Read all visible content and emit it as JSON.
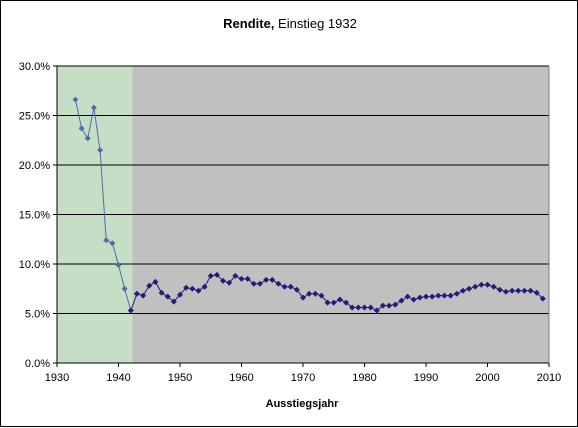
{
  "chart_data": {
    "type": "line",
    "title_bold": "Rendite,",
    "title_rest": " Einstieg 1932",
    "xlabel": "Ausstiegsjahr",
    "ylabel": "",
    "xlim": [
      1930,
      2010
    ],
    "ylim": [
      0.0,
      0.3
    ],
    "x_ticks": [
      1930,
      1940,
      1950,
      1960,
      1970,
      1980,
      1990,
      2000,
      2010
    ],
    "x_tick_labels": [
      "1930",
      "1940",
      "1950",
      "1960",
      "1970",
      "1980",
      "1990",
      "2000",
      "2010"
    ],
    "y_ticks": [
      0.0,
      0.05,
      0.1,
      0.15,
      0.2,
      0.25,
      0.3
    ],
    "y_tick_labels": [
      "0.0%",
      "5.0%",
      "10.0%",
      "15.0%",
      "20.0%",
      "25.0%",
      "30.0%"
    ],
    "grid": "horizontal",
    "highlight_range": [
      1930,
      1942.3
    ],
    "colors": {
      "plot_background": "#c0c0c0",
      "highlight": "#c6dec6",
      "series_early": "#4a6fa5",
      "series_main": "#1f1f7a",
      "gridline": "#000000"
    },
    "series": [
      {
        "segment": "early",
        "x": [
          1933,
          1934,
          1935,
          1936,
          1937,
          1938,
          1939,
          1940,
          1941,
          1942
        ],
        "y": [
          0.266,
          0.237,
          0.227,
          0.258,
          0.215,
          0.124,
          0.121,
          0.099,
          0.075,
          0.053
        ]
      },
      {
        "segment": "main",
        "x": [
          1942,
          1943,
          1944,
          1945,
          1946,
          1947,
          1948,
          1949,
          1950,
          1951,
          1952,
          1953,
          1954,
          1955,
          1956,
          1957,
          1958,
          1959,
          1960,
          1961,
          1962,
          1963,
          1964,
          1965,
          1966,
          1967,
          1968,
          1969,
          1970,
          1971,
          1972,
          1973,
          1974,
          1975,
          1976,
          1977,
          1978,
          1979,
          1980,
          1981,
          1982,
          1983,
          1984,
          1985,
          1986,
          1987,
          1988,
          1989,
          1990,
          1991,
          1992,
          1993,
          1994,
          1995,
          1996,
          1997,
          1998,
          1999,
          2000,
          2001,
          2002,
          2003,
          2004,
          2005,
          2006,
          2007,
          2008,
          2009
        ],
        "y": [
          0.053,
          0.07,
          0.068,
          0.078,
          0.082,
          0.071,
          0.067,
          0.062,
          0.069,
          0.076,
          0.075,
          0.073,
          0.077,
          0.088,
          0.089,
          0.083,
          0.081,
          0.088,
          0.085,
          0.085,
          0.08,
          0.08,
          0.084,
          0.084,
          0.08,
          0.077,
          0.077,
          0.074,
          0.066,
          0.07,
          0.07,
          0.068,
          0.061,
          0.061,
          0.064,
          0.061,
          0.056,
          0.056,
          0.056,
          0.056,
          0.053,
          0.058,
          0.058,
          0.059,
          0.063,
          0.067,
          0.064,
          0.066,
          0.067,
          0.067,
          0.068,
          0.068,
          0.068,
          0.07,
          0.073,
          0.075,
          0.077,
          0.079,
          0.079,
          0.077,
          0.074,
          0.072,
          0.073,
          0.073,
          0.073,
          0.073,
          0.071,
          0.065
        ]
      }
    ]
  }
}
